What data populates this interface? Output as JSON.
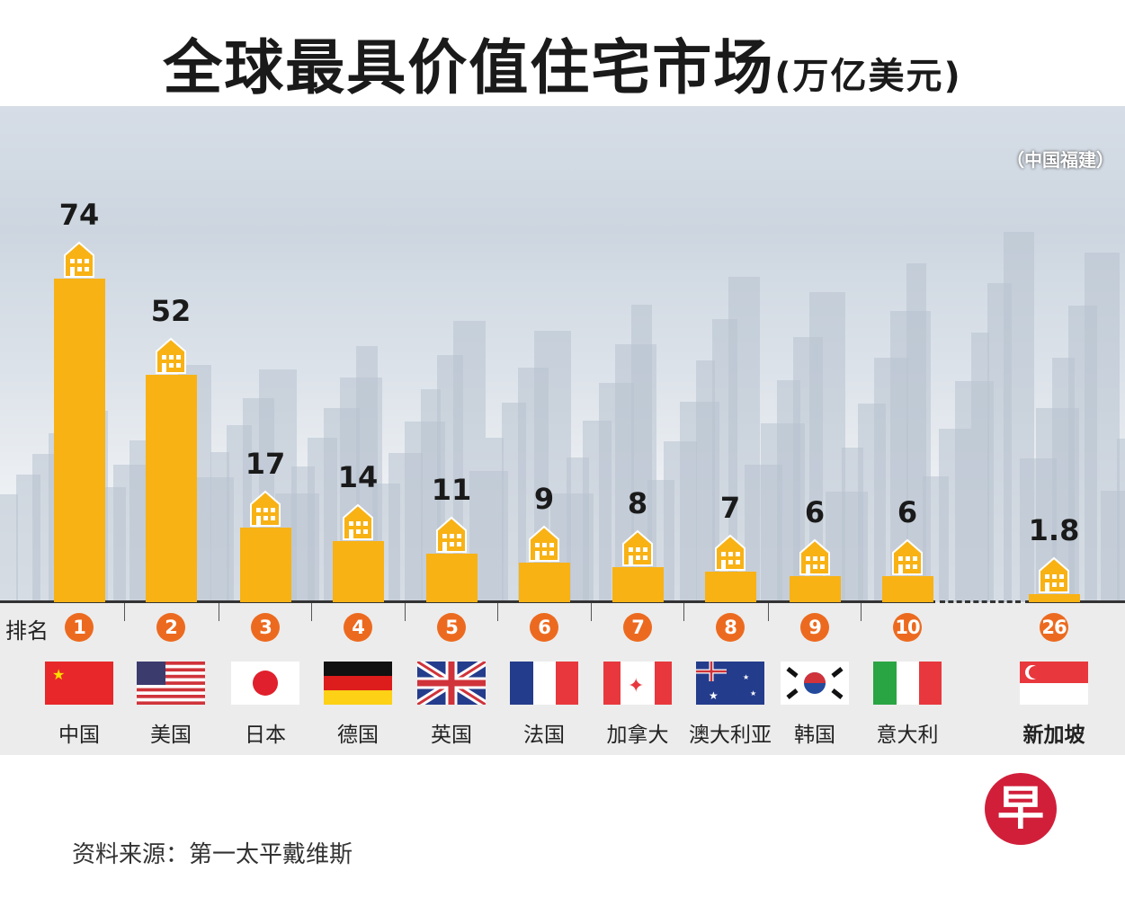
{
  "title": "全球最具价值住宅市场",
  "unit": "(万亿美元)",
  "photo_credit": "（中国福建）",
  "rank_label": "排名",
  "source": "资料来源：第一太平戴维斯",
  "logo_text": "早",
  "colors": {
    "bar": "#f8b214",
    "rank": "#ec6a1f",
    "logo": "#d11f3a"
  },
  "chart_data": {
    "type": "bar",
    "title": "全球最具价值住宅市场(万亿美元)",
    "ylabel": "万亿美元",
    "categories": [
      "中国",
      "美国",
      "日本",
      "德国",
      "英国",
      "法国",
      "加拿大",
      "澳大利亚",
      "韩国",
      "意大利",
      "新加坡"
    ],
    "values": [
      74,
      52,
      17,
      14,
      11,
      9,
      8,
      7,
      6,
      6,
      1.8
    ],
    "value_labels": [
      "74",
      "52",
      "17",
      "14",
      "11",
      "9",
      "8",
      "7",
      "6",
      "6",
      "1.8"
    ],
    "ranks": [
      "1",
      "2",
      "3",
      "4",
      "5",
      "6",
      "7",
      "8",
      "9",
      "10",
      "26"
    ],
    "flags": [
      "cn",
      "us",
      "jp",
      "de",
      "gb",
      "fr",
      "ca",
      "au",
      "kr",
      "it",
      "sg"
    ],
    "ylim": [
      0,
      80
    ]
  }
}
